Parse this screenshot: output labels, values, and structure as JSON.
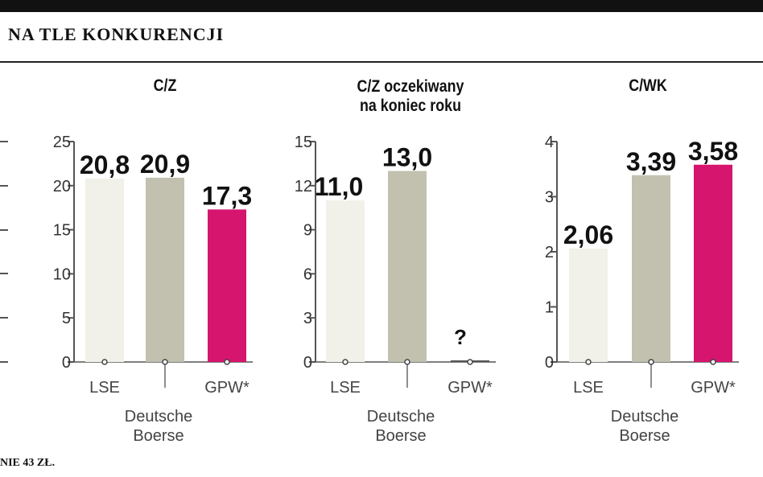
{
  "header": {
    "title": "NA TLE KONKURENCJI"
  },
  "footnote": "NIE 43 ZŁ.",
  "colors": {
    "lse": "#f1f1ea",
    "deutsche_boerse": "#c2c1b0",
    "gpw": "#d6156e"
  },
  "chart_data": [
    {
      "type": "bar",
      "title": "C/Z",
      "categories": [
        "LSE",
        "Deutsche Boerse",
        "GPW*"
      ],
      "values": [
        20.8,
        20.9,
        17.3
      ],
      "value_labels": [
        "20,8",
        "20,9",
        "17,3"
      ],
      "yticks": [
        0,
        5,
        10,
        15,
        20,
        25
      ],
      "ylim": [
        0,
        25
      ],
      "xlabel": "",
      "ylabel": ""
    },
    {
      "type": "bar",
      "title": "C/Z oczekiwany na koniec roku",
      "categories": [
        "LSE",
        "Deutsche Boerse",
        "GPW*"
      ],
      "values": [
        11.0,
        13.0,
        null
      ],
      "value_labels": [
        "11,0",
        "13,0",
        "?"
      ],
      "yticks": [
        0,
        3,
        6,
        9,
        12,
        15
      ],
      "ylim": [
        0,
        15
      ],
      "xlabel": "",
      "ylabel": ""
    },
    {
      "type": "bar",
      "title": "C/WK",
      "categories": [
        "LSE",
        "Deutsche Boerse",
        "GPW*"
      ],
      "values": [
        2.06,
        3.39,
        3.58
      ],
      "value_labels": [
        "2,06",
        "3,39",
        "3,58"
      ],
      "yticks": [
        0,
        1,
        2,
        3,
        4
      ],
      "ylim": [
        0,
        4
      ],
      "xlabel": "",
      "ylabel": ""
    }
  ]
}
